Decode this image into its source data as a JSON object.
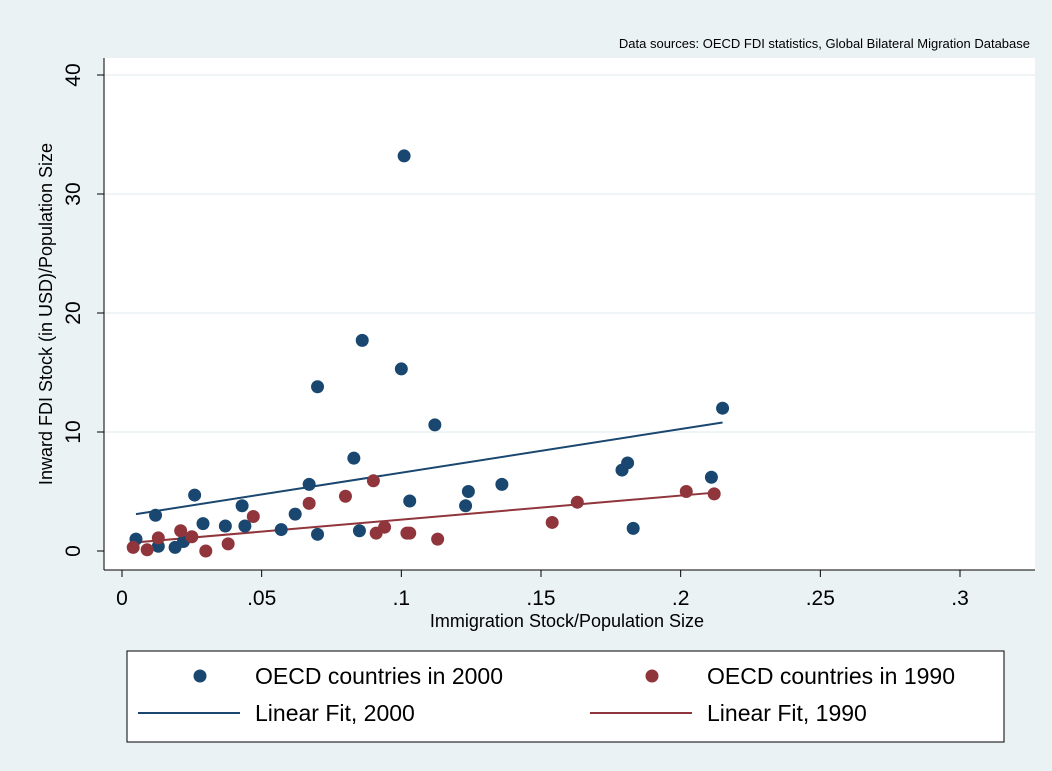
{
  "chart_data": {
    "type": "scatter",
    "note": "Data sources: OECD FDI statistics, Global Bilateral Migration Database",
    "xlabel": "Immigration Stock/Population Size",
    "ylabel": "Inward FDI Stock (in USD)/Population Size",
    "xlim": [
      0,
      0.325
    ],
    "ylim": [
      -1.5,
      40.5
    ],
    "xticks": [
      0,
      0.05,
      0.1,
      0.15,
      0.2,
      0.25,
      0.3
    ],
    "xtick_labels": [
      "0",
      ".05",
      ".1",
      ".15",
      ".2",
      ".25",
      ".3"
    ],
    "yticks": [
      0,
      10,
      20,
      30,
      40
    ],
    "ytick_labels": [
      "0",
      "10",
      "20",
      "30",
      "40"
    ],
    "grid": true,
    "legend_position": "bottom",
    "series": [
      {
        "name": "OECD countries in 2000",
        "kind": "scatter",
        "color": "#1a476f",
        "points": [
          [
            0.005,
            1.0
          ],
          [
            0.012,
            3.0
          ],
          [
            0.013,
            0.4
          ],
          [
            0.019,
            0.3
          ],
          [
            0.022,
            0.8
          ],
          [
            0.026,
            4.7
          ],
          [
            0.029,
            2.3
          ],
          [
            0.037,
            2.1
          ],
          [
            0.043,
            3.8
          ],
          [
            0.044,
            2.1
          ],
          [
            0.057,
            1.8
          ],
          [
            0.062,
            3.1
          ],
          [
            0.067,
            5.6
          ],
          [
            0.07,
            13.8
          ],
          [
            0.07,
            1.4
          ],
          [
            0.083,
            7.8
          ],
          [
            0.085,
            1.7
          ],
          [
            0.086,
            17.7
          ],
          [
            0.1,
            15.3
          ],
          [
            0.101,
            33.2
          ],
          [
            0.103,
            4.2
          ],
          [
            0.112,
            10.6
          ],
          [
            0.123,
            3.8
          ],
          [
            0.124,
            5.0
          ],
          [
            0.136,
            5.6
          ],
          [
            0.179,
            6.8
          ],
          [
            0.181,
            7.4
          ],
          [
            0.183,
            1.9
          ],
          [
            0.211,
            6.2
          ],
          [
            0.215,
            12.0
          ]
        ]
      },
      {
        "name": "OECD countries in 1990",
        "kind": "scatter",
        "color": "#90353b",
        "points": [
          [
            0.004,
            0.3
          ],
          [
            0.009,
            0.1
          ],
          [
            0.013,
            1.1
          ],
          [
            0.021,
            1.7
          ],
          [
            0.025,
            1.2
          ],
          [
            0.03,
            0.0
          ],
          [
            0.038,
            0.6
          ],
          [
            0.047,
            2.9
          ],
          [
            0.067,
            4.0
          ],
          [
            0.08,
            4.6
          ],
          [
            0.09,
            5.9
          ],
          [
            0.091,
            1.5
          ],
          [
            0.094,
            2.0
          ],
          [
            0.102,
            1.5
          ],
          [
            0.103,
            1.5
          ],
          [
            0.113,
            1.0
          ],
          [
            0.154,
            2.4
          ],
          [
            0.163,
            4.1
          ],
          [
            0.202,
            5.0
          ],
          [
            0.212,
            4.8
          ]
        ]
      },
      {
        "name": "Linear Fit, 2000",
        "kind": "line",
        "color": "#1a476f",
        "x": [
          0.005,
          0.215
        ],
        "y": [
          3.1,
          10.8
        ]
      },
      {
        "name": "Linear Fit, 1990",
        "kind": "line",
        "color": "#90353b",
        "x": [
          0.004,
          0.212
        ],
        "y": [
          0.7,
          4.9
        ]
      }
    ]
  }
}
